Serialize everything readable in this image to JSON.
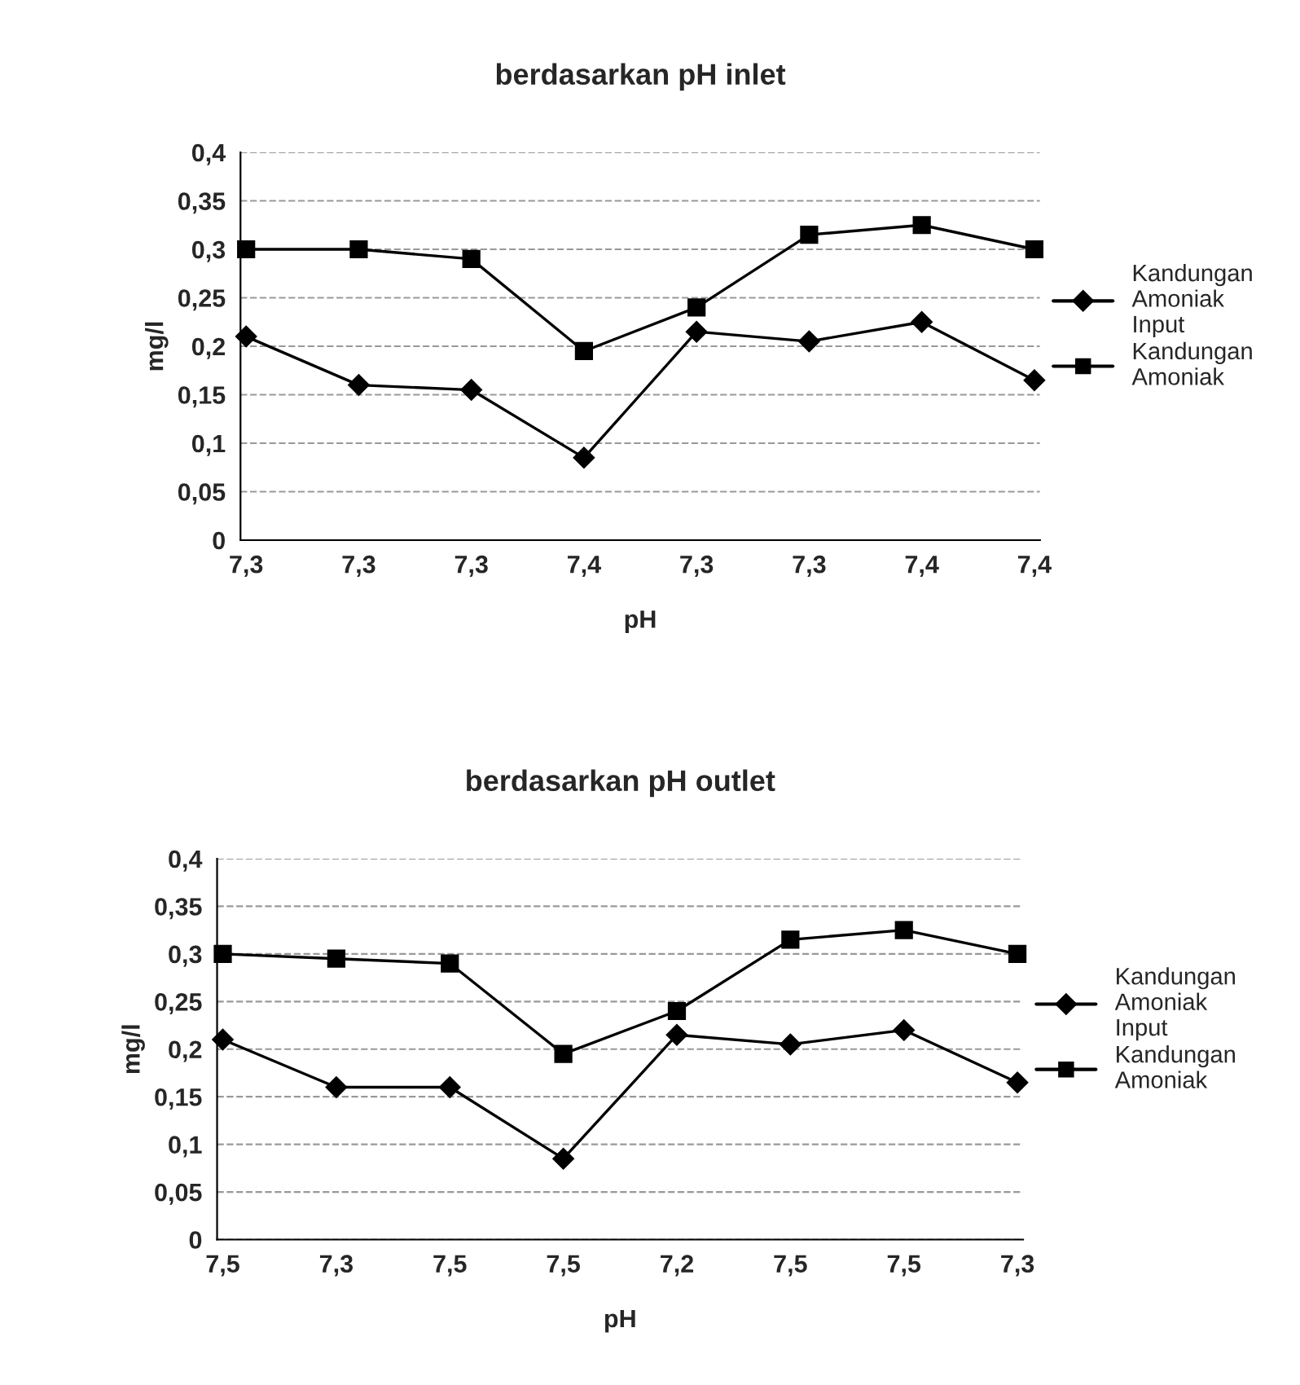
{
  "chart_data": [
    {
      "type": "line",
      "title": "berdasarkan pH inlet",
      "xlabel": "pH",
      "ylabel": "mg/l",
      "categories": [
        "7,3",
        "7,3",
        "7,3",
        "7,4",
        "7,3",
        "7,3",
        "7,4",
        "7,4"
      ],
      "series": [
        {
          "name": "Kandungan Amoniak Input",
          "color": "#000000",
          "marker": "diamond",
          "values": [
            0.21,
            0.16,
            0.155,
            0.085,
            0.215,
            0.205,
            0.225,
            0.165
          ]
        },
        {
          "name": "Kandungan Amoniak",
          "color": "#000000",
          "marker": "square",
          "values": [
            0.3,
            0.3,
            0.29,
            0.195,
            0.24,
            0.315,
            0.325,
            0.3
          ]
        }
      ],
      "ylim": [
        0,
        0.4
      ],
      "yticks": [
        {
          "value": 0,
          "label": "0"
        },
        {
          "value": 0.05,
          "label": "0,05"
        },
        {
          "value": 0.1,
          "label": "0,1"
        },
        {
          "value": 0.15,
          "label": "0,15"
        },
        {
          "value": 0.2,
          "label": "0,2"
        },
        {
          "value": 0.25,
          "label": "0,25"
        },
        {
          "value": 0.3,
          "label": "0,3"
        },
        {
          "value": 0.35,
          "label": "0,35"
        },
        {
          "value": 0.4,
          "label": "0,4"
        }
      ],
      "grid": "y",
      "legend": "right"
    },
    {
      "type": "line",
      "title": "berdasarkan pH outlet",
      "xlabel": "pH",
      "ylabel": "mg/l",
      "categories": [
        "7,5",
        "7,3",
        "7,5",
        "7,5",
        "7,2",
        "7,5",
        "7,5",
        "7,3"
      ],
      "series": [
        {
          "name": "Kandungan Amoniak Input",
          "color": "#000000",
          "marker": "diamond",
          "values": [
            0.21,
            0.16,
            0.16,
            0.085,
            0.215,
            0.205,
            0.22,
            0.165
          ]
        },
        {
          "name": "Kandungan Amoniak",
          "color": "#000000",
          "marker": "square",
          "values": [
            0.3,
            0.295,
            0.29,
            0.195,
            0.24,
            0.315,
            0.325,
            0.3
          ]
        }
      ],
      "ylim": [
        0,
        0.4
      ],
      "yticks": [
        {
          "value": 0,
          "label": "0"
        },
        {
          "value": 0.05,
          "label": "0,05"
        },
        {
          "value": 0.1,
          "label": "0,1"
        },
        {
          "value": 0.15,
          "label": "0,15"
        },
        {
          "value": 0.2,
          "label": "0,2"
        },
        {
          "value": 0.25,
          "label": "0,25"
        },
        {
          "value": 0.3,
          "label": "0,3"
        },
        {
          "value": 0.35,
          "label": "0,35"
        },
        {
          "value": 0.4,
          "label": "0,4"
        }
      ],
      "grid": "y",
      "legend": "right"
    }
  ]
}
